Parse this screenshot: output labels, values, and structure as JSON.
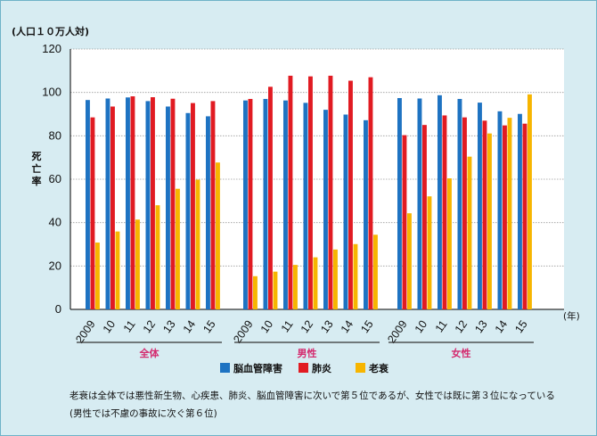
{
  "chart_data": {
    "type": "bar",
    "unit_label": "(人口１０万人対)",
    "ylabel": "死亡率",
    "ylim": [
      0,
      120
    ],
    "yticks": [
      0,
      20,
      40,
      60,
      80,
      100,
      120
    ],
    "x_unit": "(年)",
    "groups": [
      {
        "name": "全体",
        "categories": [
          "2009",
          "10",
          "11",
          "12",
          "13",
          "14",
          "15"
        ]
      },
      {
        "name": "男性",
        "categories": [
          "2009",
          "10",
          "11",
          "12",
          "13",
          "14",
          "15"
        ]
      },
      {
        "name": "女性",
        "categories": [
          "2009",
          "10",
          "11",
          "12",
          "13",
          "14",
          "15"
        ]
      }
    ],
    "series": [
      {
        "name": "脳血管障害",
        "color": "#1e73c2",
        "values": [
          [
            96.5,
            97.2,
            97.7,
            96.0,
            93.5,
            90.5,
            89.0
          ],
          [
            96.3,
            97.0,
            96.3,
            95.2,
            92.0,
            89.8,
            87.2
          ],
          [
            97.4,
            97.2,
            98.7,
            97.0,
            95.3,
            91.3,
            90.1
          ]
        ]
      },
      {
        "name": "肺炎",
        "color": "#e11b22",
        "values": [
          [
            88.5,
            93.5,
            98.2,
            97.8,
            97.1,
            95.1,
            96.0
          ],
          [
            97.0,
            102.6,
            107.7,
            107.4,
            107.7,
            105.4,
            107.0
          ],
          [
            80.3,
            85.0,
            89.4,
            88.5,
            87.0,
            84.8,
            85.6
          ]
        ]
      },
      {
        "name": "老衰",
        "color": "#f7b500",
        "values": [
          [
            30.8,
            35.9,
            41.4,
            48.0,
            55.6,
            59.8,
            67.7
          ],
          [
            15.3,
            17.4,
            20.5,
            24.0,
            27.6,
            30.1,
            34.4
          ],
          [
            44.3,
            52.1,
            60.4,
            70.4,
            81.1,
            88.3,
            99.1
          ]
        ]
      }
    ]
  },
  "notes": {
    "line1": "老衰は全体では悪性新生物、心疾患、肺炎、脳血管障害に次いで第５位であるが、女性では既に第３位になっている",
    "line2": "(男性では不慮の事故に次ぐ第６位)"
  }
}
